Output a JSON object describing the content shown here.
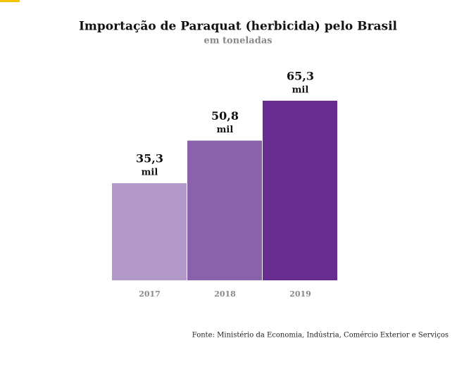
{
  "chart_data": {
    "type": "bar",
    "title": "Importação de Paraquat (herbicida) pelo Brasil",
    "subtitle": "em toneladas",
    "categories": [
      "2017",
      "2018",
      "2019"
    ],
    "values": [
      35.3,
      50.8,
      65.3
    ],
    "value_labels": [
      "35,3",
      "50,8",
      "65,3"
    ],
    "value_unit": "mil",
    "colors": [
      "#b399c8",
      "#8a62ab",
      "#682d91"
    ],
    "source": "Fonte: Ministério da Economia, Indústria, Comércio Exterior e Serviços"
  }
}
